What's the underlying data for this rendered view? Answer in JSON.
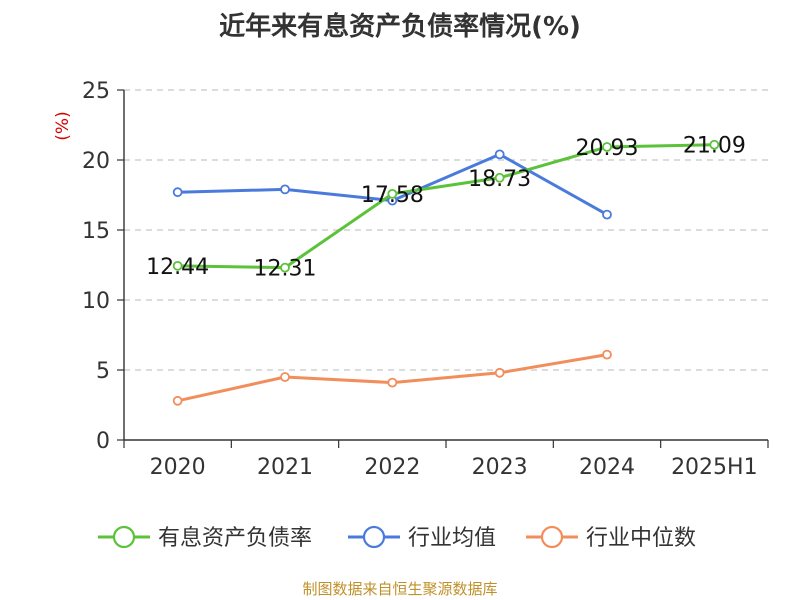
{
  "chart_data": {
    "type": "line",
    "title": "近年来有息资产负债率情况(%)",
    "ylabel": "(%)",
    "ylim": [
      0,
      25
    ],
    "yticks": [
      0,
      5,
      10,
      15,
      20,
      25
    ],
    "categories": [
      "2020",
      "2021",
      "2022",
      "2023",
      "2024",
      "2025H1"
    ],
    "grid": "dashed horizontal",
    "legend_position": "bottom",
    "series": [
      {
        "name": "有息资产负债率",
        "color": "#5cc23a",
        "values": [
          12.44,
          12.31,
          17.58,
          18.73,
          20.93,
          21.09
        ],
        "labels": true
      },
      {
        "name": "行业均值",
        "color": "#4a7bdc",
        "values": [
          17.7,
          17.9,
          17.1,
          20.4,
          16.1,
          null
        ],
        "labels": false
      },
      {
        "name": "行业中位数",
        "color": "#f28e5b",
        "values": [
          2.8,
          4.5,
          4.1,
          4.8,
          6.1,
          null
        ],
        "labels": false
      }
    ]
  },
  "footer": "制图数据来自恒生聚源数据库"
}
